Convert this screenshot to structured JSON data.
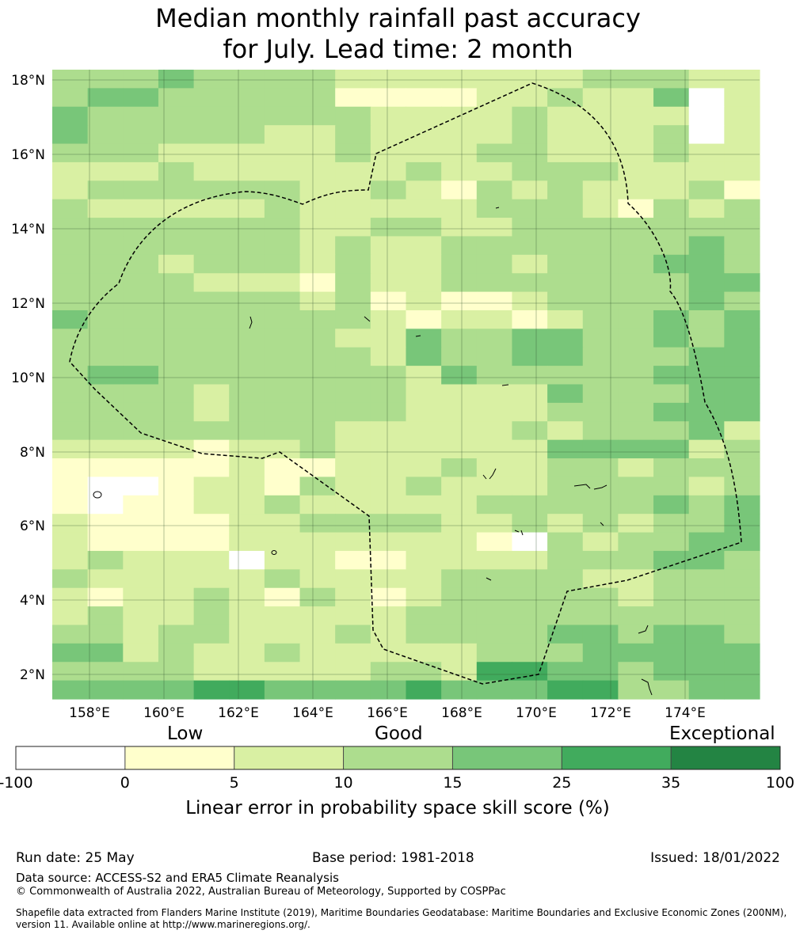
{
  "title": {
    "line1": "Median monthly rainfall past accuracy",
    "line2": "for July. Lead time: 2 month"
  },
  "map": {
    "lat_labels": [
      "18°N",
      "16°N",
      "14°N",
      "12°N",
      "10°N",
      "8°N",
      "6°N",
      "4°N",
      "2°N"
    ],
    "lon_labels": [
      "158°E",
      "160°E",
      "162°E",
      "164°E",
      "166°E",
      "168°E",
      "170°E",
      "172°E",
      "174°E"
    ],
    "grid_rows": [
      "33343333222222233322",
      "34433333111122322402",
      "43333333322223222202",
      "43333322322223222302",
      "33322222322233222322",
      "22232222223223332222",
      "23333332232132322231",
      "32222232222233321323",
      "33333332233223333333",
      "33333332322333333343",
      "33323332322332333443",
      "33332221322333333344",
      "33333332312112333343",
      "43333333321221233434",
      "33333333224334433434",
      "33333333324334433344",
      "34433333332433333444",
      "33332333332222433344",
      "33332333332222333444",
      "33333333222223233342",
      "22221223222222444423",
      "11111211222322332333",
      "10012213223222333323",
      "10112232222233333434",
      "21111223333223232334",
      "21111222222210323344",
      "23222022112222333443",
      "32222232222333322333",
      "21223213212333332333",
      "23223222223333333333",
      "33233222323333443443",
      "44232232222233344444",
      "33332222233255443444",
      "44445544445444553344"
    ],
    "palette": {
      "0": "#ffffff",
      "1": "#ffffcc",
      "2": "#d9f0a3",
      "3": "#addd8e",
      "4": "#78c679",
      "5": "#41ab5d",
      "6": "#238443"
    }
  },
  "colorbar": {
    "category_labels": [
      "Low",
      "Good",
      "Exceptional"
    ],
    "tick_labels": [
      "-100",
      "0",
      "5",
      "10",
      "15",
      "25",
      "35",
      "100"
    ],
    "colors": [
      "#ffffff",
      "#ffffcc",
      "#d9f0a3",
      "#addd8e",
      "#78c679",
      "#41ab5d",
      "#238443"
    ],
    "axis_label": "Linear error in probability space skill score (%)"
  },
  "footer": {
    "run_date": "Run date: 25 May",
    "base_period": "Base period: 1981-2018",
    "issued": "Issued: 18/01/2022",
    "data_source": "Data source: ACCESS-S2 and ERA5 Climate Reanalysis",
    "copyright": "© Commonwealth of Australia 2022, Australian Bureau of Meteorology, Supported by COSPPac",
    "shapefile": "Shapefile data extracted from Flanders Marine Institute (2019), Maritime Boundaries Geodatabase: Maritime Boundaries and Exclusive Economic Zones (200NM), version 11. Available online at http://www.marineregions.org/."
  }
}
